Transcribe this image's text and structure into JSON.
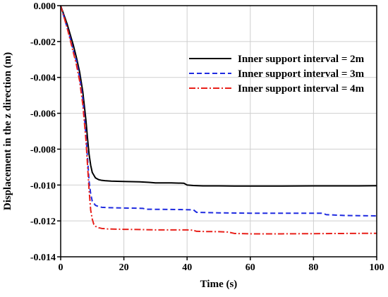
{
  "chart_data": {
    "type": "line",
    "title": "",
    "xlabel": "Time (s)",
    "ylabel": "Displacement in the z direction (m)",
    "xlim": [
      0,
      100
    ],
    "ylim": [
      -0.014,
      0.0
    ],
    "xticks": [
      "0",
      "20",
      "40",
      "60",
      "80",
      "100"
    ],
    "yticks": [
      "0.000",
      "-0.002",
      "-0.004",
      "-0.006",
      "-0.008",
      "-0.010",
      "-0.012",
      "-0.014"
    ],
    "grid": true,
    "legend_position": "top-right",
    "series": [
      {
        "name": "Inner support interval = 2m",
        "color": "#000000",
        "dash": "solid",
        "x": [
          0,
          1,
          2,
          3,
          4,
          5,
          6,
          7,
          8,
          8.5,
          9,
          9.5,
          10,
          11,
          12,
          13,
          14,
          16,
          20,
          25,
          28,
          30,
          35,
          39,
          40,
          42,
          45,
          50,
          55,
          60,
          70,
          80,
          90,
          100
        ],
        "y": [
          0.0,
          -0.0005,
          -0.001,
          -0.0016,
          -0.0022,
          -0.0029,
          -0.0037,
          -0.0048,
          -0.0064,
          -0.0074,
          -0.0083,
          -0.0089,
          -0.0093,
          -0.0096,
          -0.0097,
          -0.00974,
          -0.00976,
          -0.00978,
          -0.0098,
          -0.00982,
          -0.00985,
          -0.00988,
          -0.00988,
          -0.0099,
          -0.01,
          -0.01003,
          -0.01005,
          -0.01005,
          -0.01006,
          -0.01006,
          -0.01006,
          -0.01005,
          -0.01005,
          -0.01004
        ]
      },
      {
        "name": "Inner support interval = 3m",
        "color": "#1f2be0",
        "dash": "dashed",
        "x": [
          0,
          1,
          2,
          3,
          4,
          5,
          6,
          7,
          8,
          8.5,
          9,
          9.5,
          10,
          11,
          12,
          13,
          15,
          20,
          26,
          27,
          35,
          42,
          43,
          50,
          60,
          70,
          80,
          83,
          84,
          90,
          100
        ],
        "y": [
          0.0,
          -0.0006,
          -0.0012,
          -0.0018,
          -0.0025,
          -0.0031,
          -0.004,
          -0.0052,
          -0.0072,
          -0.0085,
          -0.0098,
          -0.0105,
          -0.0109,
          -0.01113,
          -0.0112,
          -0.01124,
          -0.01126,
          -0.01128,
          -0.0113,
          -0.01135,
          -0.01136,
          -0.01138,
          -0.01152,
          -0.01155,
          -0.01157,
          -0.01157,
          -0.01157,
          -0.01157,
          -0.01165,
          -0.0117,
          -0.01172
        ]
      },
      {
        "name": "Inner support interval = 4m",
        "color": "#e8201a",
        "dash": "dashdot",
        "x": [
          0,
          1,
          2,
          3,
          4,
          5,
          6,
          7,
          8,
          8.5,
          9,
          9.5,
          10,
          10.5,
          11,
          12,
          13,
          15,
          20,
          25,
          30,
          35,
          40,
          42,
          43,
          45,
          50,
          53,
          55,
          60,
          70,
          80,
          90,
          100
        ],
        "y": [
          0.0,
          -0.0006,
          -0.0012,
          -0.0019,
          -0.0026,
          -0.0033,
          -0.0042,
          -0.0055,
          -0.0075,
          -0.0089,
          -0.0103,
          -0.0114,
          -0.0119,
          -0.0122,
          -0.0123,
          -0.01238,
          -0.01242,
          -0.01245,
          -0.01247,
          -0.01248,
          -0.0125,
          -0.0125,
          -0.0125,
          -0.01252,
          -0.01258,
          -0.01259,
          -0.0126,
          -0.01262,
          -0.0127,
          -0.01272,
          -0.01272,
          -0.01271,
          -0.0127,
          -0.01269
        ]
      }
    ]
  }
}
